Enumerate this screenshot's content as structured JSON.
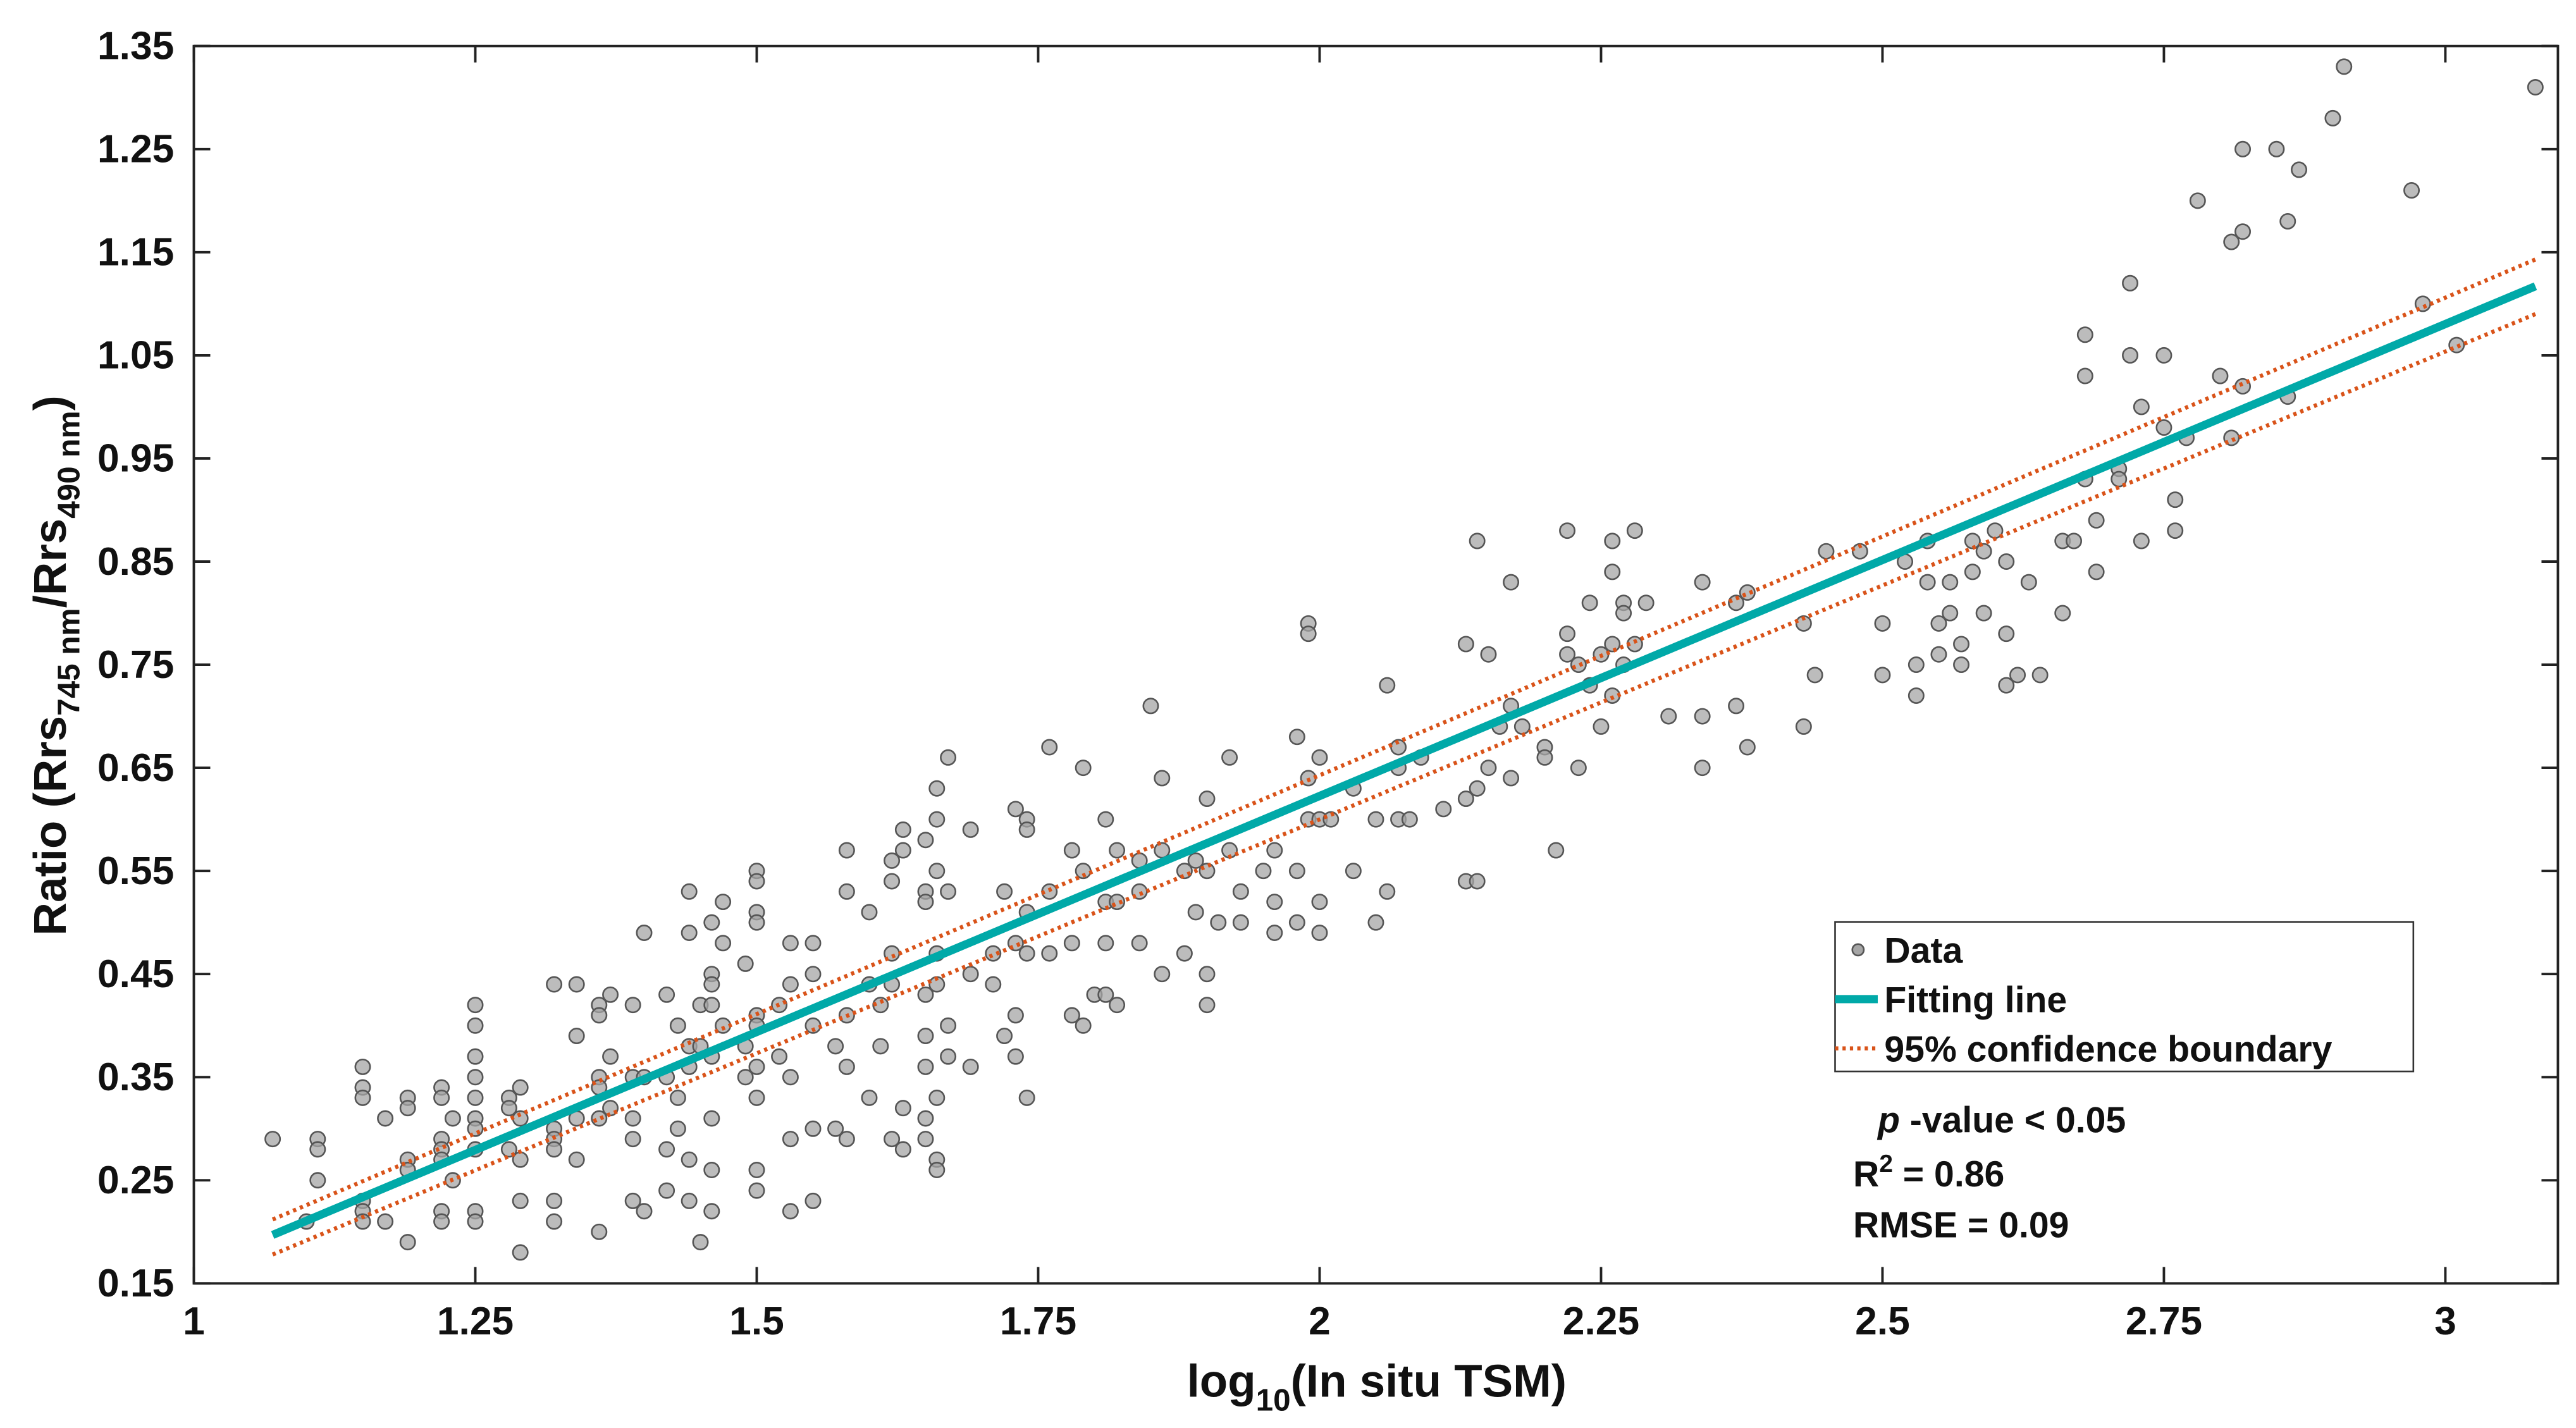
{
  "chart_data": {
    "type": "scatter",
    "x_label": [
      "log",
      "10",
      "(In situ TSM)"
    ],
    "y_label": [
      "Ratio (Rrs",
      "745 nm",
      "/Rrs",
      "490 nm",
      ")"
    ],
    "xlim": [
      1,
      3.1
    ],
    "xticks": [
      1,
      1.25,
      1.5,
      1.75,
      2,
      2.25,
      2.5,
      2.75,
      3
    ],
    "ylim": [
      0.15,
      1.35
    ],
    "yticks": [
      0.15,
      0.25,
      0.35,
      0.45,
      0.55,
      0.65,
      0.75,
      0.85,
      0.95,
      1.05,
      1.15,
      1.25,
      1.35
    ],
    "legend": "lower right",
    "annotations": [
      [
        "p",
        " -value < 0.05"
      ],
      [
        "R",
        "2",
        " = 0.86"
      ],
      [
        "RMSE = 0.09"
      ]
    ],
    "series": [
      {
        "name": "Data",
        "type": "scatter",
        "color": "#a6a6a6",
        "x": [
          1.07,
          1.1,
          1.11,
          1.11,
          1.11,
          1.15,
          1.15,
          1.15,
          1.15,
          1.15,
          1.15,
          1.17,
          1.17,
          1.19,
          1.19,
          1.19,
          1.19,
          1.19,
          1.22,
          1.22,
          1.22,
          1.22,
          1.22,
          1.22,
          1.22,
          1.23,
          1.23,
          1.25,
          1.25,
          1.25,
          1.25,
          1.25,
          1.25,
          1.25,
          1.25,
          1.25,
          1.25,
          1.28,
          1.28,
          1.28,
          1.29,
          1.29,
          1.29,
          1.29,
          1.29,
          1.32,
          1.32,
          1.32,
          1.32,
          1.32,
          1.32,
          1.34,
          1.34,
          1.34,
          1.34,
          1.36,
          1.36,
          1.36,
          1.36,
          1.36,
          1.36,
          1.37,
          1.37,
          1.37,
          1.39,
          1.39,
          1.39,
          1.39,
          1.39,
          1.4,
          1.4,
          1.4,
          1.42,
          1.42,
          1.42,
          1.42,
          1.43,
          1.43,
          1.43,
          1.44,
          1.44,
          1.44,
          1.44,
          1.44,
          1.44,
          1.45,
          1.45,
          1.45,
          1.46,
          1.46,
          1.46,
          1.46,
          1.46,
          1.46,
          1.46,
          1.46,
          1.47,
          1.47,
          1.47,
          1.49,
          1.49,
          1.49,
          1.5,
          1.5,
          1.5,
          1.5,
          1.5,
          1.5,
          1.5,
          1.5,
          1.5,
          1.5,
          1.52,
          1.52,
          1.53,
          1.53,
          1.53,
          1.53,
          1.53,
          1.55,
          1.55,
          1.55,
          1.55,
          1.55,
          1.57,
          1.57,
          1.58,
          1.58,
          1.58,
          1.58,
          1.58,
          1.6,
          1.6,
          1.6,
          1.61,
          1.61,
          1.62,
          1.62,
          1.62,
          1.62,
          1.62,
          1.63,
          1.63,
          1.63,
          1.63,
          1.65,
          1.65,
          1.65,
          1.65,
          1.65,
          1.65,
          1.65,
          1.65,
          1.66,
          1.66,
          1.66,
          1.66,
          1.66,
          1.66,
          1.66,
          1.66,
          1.67,
          1.67,
          1.67,
          1.67,
          1.69,
          1.69,
          1.69,
          1.71,
          1.71,
          1.72,
          1.72,
          1.73,
          1.73,
          1.73,
          1.73,
          1.74,
          1.74,
          1.74,
          1.74,
          1.74,
          1.76,
          1.76,
          1.76,
          1.78,
          1.78,
          1.78,
          1.79,
          1.79,
          1.79,
          1.8,
          1.81,
          1.81,
          1.81,
          1.81,
          1.82,
          1.82,
          1.82,
          1.84,
          1.84,
          1.84,
          1.85,
          1.86,
          1.86,
          1.86,
          1.88,
          1.88,
          1.89,
          1.89,
          1.9,
          1.9,
          1.9,
          1.9,
          1.91,
          1.92,
          1.92,
          1.93,
          1.93,
          1.95,
          1.96,
          1.96,
          1.96,
          1.98,
          1.98,
          1.98,
          1.99,
          1.99,
          1.99,
          1.99,
          2,
          2,
          2,
          2,
          2.01,
          2.03,
          2.03,
          2.05,
          2.05,
          2.06,
          2.06,
          2.07,
          2.07,
          2.07,
          2.08,
          2.09,
          2.11,
          2.13,
          2.13,
          2.13,
          2.14,
          2.14,
          2.14,
          2.15,
          2.15,
          2.16,
          2.17,
          2.17,
          2.17,
          2.18,
          2.2,
          2.2,
          2.21,
          2.22,
          2.22,
          2.22,
          2.23,
          2.23,
          2.24,
          2.24,
          2.25,
          2.25,
          2.26,
          2.26,
          2.26,
          2.26,
          2.27,
          2.27,
          2.27,
          2.28,
          2.28,
          2.29,
          2.31,
          2.34,
          2.34,
          2.34,
          2.37,
          2.37,
          2.38,
          2.38,
          2.43,
          2.43,
          2.44,
          2.45,
          2.48,
          2.5,
          2.5,
          2.52,
          2.53,
          2.53,
          2.54,
          2.54,
          2.55,
          2.55,
          2.56,
          2.56,
          2.57,
          2.57,
          2.58,
          2.58,
          2.59,
          2.59,
          2.6,
          2.61,
          2.61,
          2.61,
          2.62,
          2.63,
          2.64,
          2.66,
          2.66,
          2.67,
          2.68,
          2.68,
          2.68,
          2.69,
          2.69,
          2.71,
          2.71,
          2.72,
          2.72,
          2.73,
          2.73,
          2.75,
          2.75,
          2.76,
          2.76,
          2.77,
          2.78,
          2.8,
          2.81,
          2.81,
          2.82,
          2.82,
          2.82,
          2.85,
          2.86,
          2.86,
          2.87,
          2.9,
          2.91,
          2.97,
          2.98,
          3.01,
          3.08
        ],
        "values": [
          0.29,
          0.21,
          0.29,
          0.28,
          0.25,
          0.36,
          0.34,
          0.33,
          0.23,
          0.22,
          0.21,
          0.21,
          0.31,
          0.33,
          0.32,
          0.27,
          0.26,
          0.19,
          0.34,
          0.33,
          0.29,
          0.28,
          0.27,
          0.22,
          0.21,
          0.31,
          0.25,
          0.42,
          0.4,
          0.37,
          0.35,
          0.33,
          0.31,
          0.3,
          0.28,
          0.22,
          0.21,
          0.33,
          0.32,
          0.28,
          0.34,
          0.31,
          0.27,
          0.23,
          0.18,
          0.44,
          0.3,
          0.29,
          0.28,
          0.23,
          0.21,
          0.44,
          0.39,
          0.31,
          0.27,
          0.42,
          0.41,
          0.35,
          0.34,
          0.31,
          0.2,
          0.43,
          0.37,
          0.32,
          0.42,
          0.35,
          0.31,
          0.29,
          0.23,
          0.49,
          0.35,
          0.22,
          0.43,
          0.35,
          0.28,
          0.24,
          0.4,
          0.33,
          0.3,
          0.53,
          0.49,
          0.38,
          0.36,
          0.27,
          0.23,
          0.42,
          0.38,
          0.19,
          0.5,
          0.45,
          0.44,
          0.42,
          0.37,
          0.31,
          0.26,
          0.22,
          0.52,
          0.48,
          0.4,
          0.46,
          0.38,
          0.35,
          0.55,
          0.54,
          0.51,
          0.5,
          0.41,
          0.4,
          0.36,
          0.33,
          0.26,
          0.24,
          0.42,
          0.37,
          0.48,
          0.44,
          0.35,
          0.29,
          0.22,
          0.48,
          0.45,
          0.4,
          0.3,
          0.23,
          0.38,
          0.3,
          0.57,
          0.53,
          0.41,
          0.36,
          0.29,
          0.51,
          0.44,
          0.33,
          0.42,
          0.38,
          0.56,
          0.54,
          0.47,
          0.44,
          0.29,
          0.59,
          0.57,
          0.28,
          0.32,
          0.58,
          0.53,
          0.52,
          0.43,
          0.39,
          0.36,
          0.31,
          0.29,
          0.63,
          0.6,
          0.55,
          0.47,
          0.44,
          0.33,
          0.27,
          0.26,
          0.66,
          0.53,
          0.4,
          0.37,
          0.59,
          0.45,
          0.36,
          0.47,
          0.44,
          0.53,
          0.39,
          0.61,
          0.48,
          0.41,
          0.37,
          0.6,
          0.59,
          0.51,
          0.47,
          0.33,
          0.67,
          0.53,
          0.47,
          0.57,
          0.48,
          0.41,
          0.65,
          0.55,
          0.4,
          0.43,
          0.6,
          0.52,
          0.48,
          0.43,
          0.57,
          0.52,
          0.42,
          0.56,
          0.53,
          0.48,
          0.71,
          0.64,
          0.57,
          0.45,
          0.55,
          0.47,
          0.56,
          0.51,
          0.62,
          0.55,
          0.45,
          0.42,
          0.5,
          0.66,
          0.57,
          0.53,
          0.5,
          0.55,
          0.57,
          0.52,
          0.49,
          0.68,
          0.55,
          0.5,
          0.79,
          0.78,
          0.64,
          0.6,
          0.66,
          0.6,
          0.52,
          0.49,
          0.6,
          0.63,
          0.55,
          0.6,
          0.5,
          0.73,
          0.53,
          0.67,
          0.65,
          0.6,
          0.6,
          0.66,
          0.61,
          0.77,
          0.62,
          0.54,
          0.87,
          0.63,
          0.54,
          0.76,
          0.65,
          0.69,
          0.83,
          0.71,
          0.64,
          0.69,
          0.67,
          0.66,
          0.57,
          0.88,
          0.78,
          0.76,
          0.75,
          0.65,
          0.81,
          0.73,
          0.76,
          0.69,
          0.87,
          0.84,
          0.77,
          0.72,
          0.81,
          0.8,
          0.75,
          0.88,
          0.77,
          0.81,
          0.7,
          0.83,
          0.7,
          0.65,
          0.81,
          0.71,
          0.82,
          0.67,
          0.79,
          0.69,
          0.74,
          0.86,
          0.86,
          0.79,
          0.74,
          0.85,
          0.75,
          0.72,
          0.87,
          0.83,
          0.79,
          0.76,
          0.83,
          0.8,
          0.77,
          0.75,
          0.87,
          0.84,
          0.86,
          0.8,
          0.88,
          0.85,
          0.78,
          0.73,
          0.74,
          0.83,
          0.74,
          0.87,
          0.8,
          0.87,
          1.07,
          1.03,
          0.93,
          0.89,
          0.84,
          0.94,
          0.93,
          1.12,
          1.05,
          1.0,
          0.87,
          1.05,
          0.98,
          0.91,
          0.88,
          0.97,
          1.2,
          1.03,
          1.16,
          0.97,
          1.25,
          1.17,
          1.02,
          1.25,
          1.18,
          1.01,
          1.23,
          1.28,
          1.33,
          1.21,
          1.1,
          1.06,
          1.31
        ]
      },
      {
        "name": "Fitting line",
        "type": "line",
        "color": "#00a9a8",
        "x": [
          1.07,
          3.08
        ],
        "values": [
          0.197,
          1.117
        ]
      },
      {
        "name": "95% confidence boundary",
        "type": "band",
        "color": "#d95319",
        "x": [
          1.07,
          3.08
        ],
        "upper": [
          0.212,
          1.143
        ],
        "lower": [
          0.178,
          1.09
        ]
      }
    ]
  }
}
